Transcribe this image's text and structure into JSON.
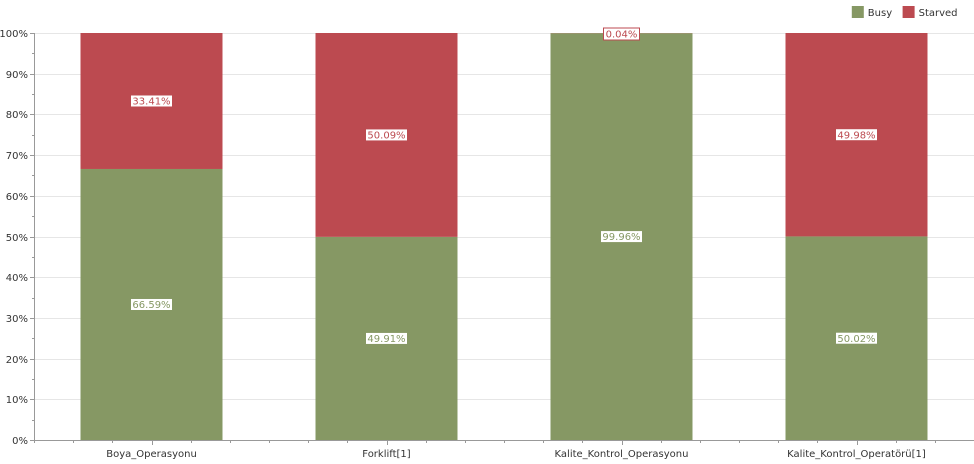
{
  "chart_data": {
    "type": "bar",
    "stacked": true,
    "categories": [
      "Boya_Operasyonu",
      "Forklift[1]",
      "Kalite_Kontrol_Operasyonu",
      "Kalite_Kontrol_Operatörü[1]"
    ],
    "series": [
      {
        "name": "Busy",
        "color": "#869864",
        "values": [
          66.59,
          49.91,
          99.96,
          50.02
        ],
        "labels": [
          "66.59%",
          "49.91%",
          "99.96%",
          "50.02%"
        ]
      },
      {
        "name": "Starved",
        "color": "#BC4A50",
        "values": [
          33.41,
          50.09,
          0.04,
          49.98
        ],
        "labels": [
          "33.41%",
          "50.09%",
          "0.04%",
          "49.98%"
        ]
      }
    ],
    "ylim": [
      0,
      100
    ],
    "yticks": [
      0,
      10,
      20,
      30,
      40,
      50,
      60,
      70,
      80,
      90,
      100
    ],
    "yticklabels": [
      "0%",
      "10%",
      "20%",
      "30%",
      "40%",
      "50%",
      "60%",
      "70%",
      "80%",
      "90%",
      "100%"
    ],
    "title": "",
    "xlabel": "",
    "ylabel": "",
    "grid": true,
    "legend_position": "top-right"
  }
}
